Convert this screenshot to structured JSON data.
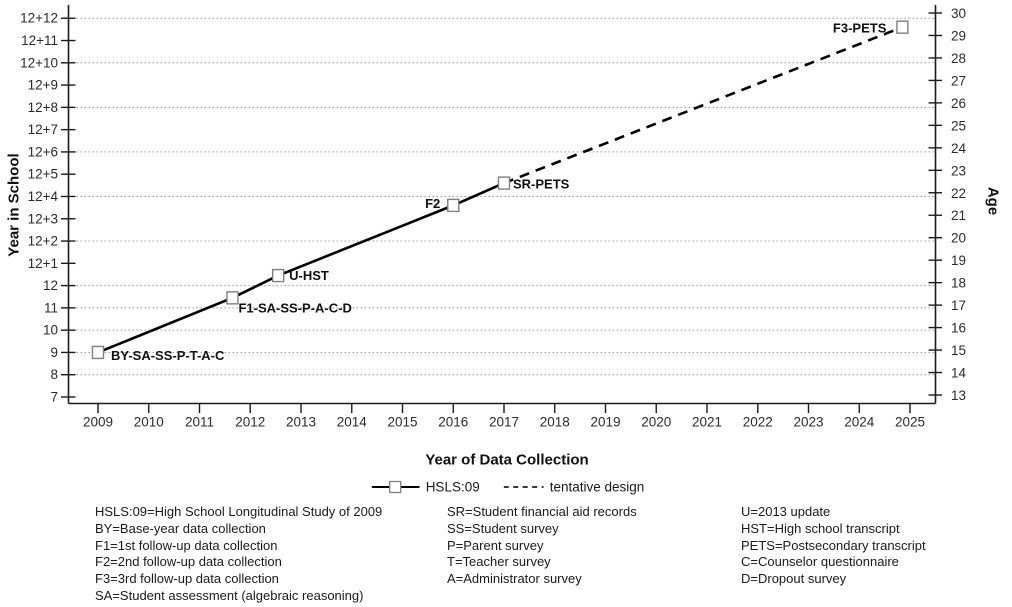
{
  "chart_data": {
    "type": "line",
    "title": "",
    "xlabel": "Year of Data Collection",
    "ylabel_left": "Year in School",
    "ylabel_right": "Age",
    "x_start_year": 2009,
    "x_tick_labels": [
      "2009",
      "2010",
      "2011",
      "2012",
      "2013",
      "2014",
      "2015",
      "2016",
      "2017",
      "2018",
      "2019",
      "2020",
      "2021",
      "2022",
      "2023",
      "2024",
      "2025"
    ],
    "y_left_ticks": [
      {
        "label": "12+12",
        "value": 24
      },
      {
        "label": "12+11",
        "value": 23
      },
      {
        "label": "12+10",
        "value": 22
      },
      {
        "label": "12+9",
        "value": 21
      },
      {
        "label": "12+8",
        "value": 20
      },
      {
        "label": "12+7",
        "value": 19
      },
      {
        "label": "12+6",
        "value": 18
      },
      {
        "label": "12+5",
        "value": 17
      },
      {
        "label": "12+4",
        "value": 16
      },
      {
        "label": "12+3",
        "value": 15
      },
      {
        "label": "12+2",
        "value": 14
      },
      {
        "label": "12+1",
        "value": 13
      },
      {
        "label": "12",
        "value": 12
      },
      {
        "label": "11",
        "value": 11
      },
      {
        "label": "10",
        "value": 10
      },
      {
        "label": "9",
        "value": 9
      },
      {
        "label": "8",
        "value": 8
      },
      {
        "label": "7",
        "value": 7
      }
    ],
    "y_right_ticks": [
      30,
      29,
      28,
      27,
      26,
      25,
      24,
      23,
      22,
      21,
      20,
      19,
      18,
      17,
      16,
      15,
      14,
      13
    ],
    "gridline_values": [
      24,
      22,
      20,
      18,
      16,
      14,
      12,
      11,
      10,
      9,
      8
    ],
    "grid": true,
    "legend_position": "bottom",
    "series": [
      {
        "name": "HSLS:09",
        "style": "solid",
        "points": [
          {
            "x": 2009.0,
            "y": 9.0,
            "label": "BY-SA-SS-P-T-A-C",
            "side": "right",
            "dx": 13,
            "dy": 3
          },
          {
            "x": 2011.65,
            "y": 11.45,
            "label": "F1-SA-SS-P-A-C-D",
            "side": "right",
            "dx": 6,
            "dy": 10
          },
          {
            "x": 2012.55,
            "y": 12.45,
            "label": "U-HST",
            "side": "right",
            "dx": 11,
            "dy": 0
          },
          {
            "x": 2016.0,
            "y": 15.6,
            "label": "F2",
            "side": "left",
            "dx": -13,
            "dy": -2
          },
          {
            "x": 2017.0,
            "y": 16.6,
            "label": "SR-PETS",
            "side": "right",
            "dx": 9,
            "dy": 1
          }
        ]
      },
      {
        "name": "tentative design",
        "style": "dashed",
        "points": [
          {
            "x": 2017.0,
            "y": 16.6,
            "marker": false
          },
          {
            "x": 2024.85,
            "y": 23.6,
            "label": "F3-PETS",
            "side": "left",
            "dx": -16,
            "dy": 1
          }
        ]
      }
    ]
  },
  "legend": {
    "series1_label": "HSLS:09",
    "series2_label": "tentative design"
  },
  "footer": {
    "col1": [
      "HSLS:09=High School Longitudinal Study of 2009",
      "BY=Base-year data collection",
      "F1=1st follow-up data collection",
      "F2=2nd follow-up data collection",
      "F3=3rd follow-up data collection",
      "SA=Student assessment (algebraic reasoning)"
    ],
    "col2": [
      "SR=Student financial aid records",
      "SS=Student survey",
      "P=Parent survey",
      "T=Teacher survey",
      "A=Administrator survey"
    ],
    "col3": [
      "U=2013 update",
      "HST=High school transcript",
      "PETS=Postsecondary transcript",
      "C=Counselor questionnaire",
      "D=Dropout survey"
    ]
  },
  "colors": {
    "line": "#000000",
    "grid": "#999999",
    "marker_stroke": "#7f7f7f",
    "axis": "#1a1a1a",
    "text": "#2b2b2b"
  }
}
